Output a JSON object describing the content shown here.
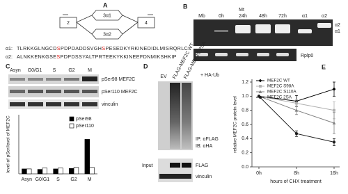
{
  "panel_labels": [
    "A",
    "B",
    "C",
    "D",
    "E"
  ],
  "panel_a": {
    "exons": [
      "2",
      "3α1",
      "3α2",
      "4"
    ],
    "sequences": [
      {
        "name": "α1:",
        "parts": [
          {
            "text": "TLRKKGLNGCD",
            "highlight": false
          },
          {
            "text": "S",
            "highlight": true
          },
          {
            "text": "PDPDADDSVGH",
            "highlight": false
          },
          {
            "text": "S",
            "highlight": true
          },
          {
            "text": "PESEDKYRKINEDIDLMISRQRLC",
            "highlight": false
          }
        ]
      },
      {
        "name": "α2:",
        "parts": [
          {
            "text": "ALNKKENKGSE",
            "highlight": false
          },
          {
            "text": "S",
            "highlight": true
          },
          {
            "text": "PDPDSSYALTPRTEEKYKKINEEFDNMIKSHKIP",
            "highlight": false
          }
        ]
      }
    ],
    "highlight_color": "#e0201a"
  },
  "panel_b": {
    "group": "Mt",
    "lanes": [
      "Mb",
      "0h",
      "24h",
      "48h",
      "72h",
      "α1",
      "α2"
    ],
    "bands": [
      "α2",
      "α1"
    ],
    "loading": "Rplp0"
  },
  "panel_c": {
    "lanes": [
      "Asyn",
      "G0/G1",
      "S",
      "G2",
      "M"
    ],
    "blots": [
      "pSer98 MEF2C",
      "pSer110 MEF2C",
      "vinculin"
    ]
  },
  "panel_d": {
    "lanes": [
      "EV",
      "FLAG-MEF2C WT",
      "FLAG-MEF2C 2SA"
    ],
    "treatment": "+ HA-Ub",
    "ip": [
      "IP: αFLAG",
      "IB: αHA"
    ],
    "input": "Input",
    "input_blots": [
      "FLAG",
      "vinculin"
    ]
  },
  "chart_data": [
    {
      "type": "bar",
      "y_label": "level of pSer/level of MEF2C",
      "categories": [
        "Asyn",
        "G0/G1",
        "S",
        "G2",
        "M"
      ],
      "series": [
        {
          "name": "pSer98",
          "color": "#000000",
          "values": [
            1,
            0.9,
            1,
            1.1,
            7
          ]
        },
        {
          "name": "pSer110",
          "color": "#ffffff",
          "values": [
            1,
            1.2,
            1.2,
            1.3,
            1.3
          ]
        }
      ],
      "ylim": [
        0,
        12
      ],
      "legend": "upper right"
    },
    {
      "type": "line",
      "y_label": "relative MEF2C protein level",
      "x_label": "hours of CHX treatment",
      "categories": [
        "0h",
        "8h",
        "16h"
      ],
      "series": [
        {
          "name": "MEF2C WT",
          "color": "#000000",
          "marker": "diamond",
          "values": [
            1,
            0.93,
            1.1
          ],
          "errors": [
            0,
            0.08,
            0.1
          ]
        },
        {
          "name": "MEF2C S98A",
          "color": "#b0b0b0",
          "marker": "square",
          "values": [
            1,
            0.9,
            0.8
          ],
          "errors": [
            0,
            0.05,
            0.12
          ]
        },
        {
          "name": "MEF2C S110A",
          "color": "#808080",
          "marker": "triangle",
          "values": [
            1,
            0.8,
            0.62
          ],
          "errors": [
            0,
            0.06,
            0.15
          ]
        },
        {
          "name": "MEF2C 2SA",
          "color": "#1a1a1a",
          "marker": "circle",
          "values": [
            1,
            0.47,
            0.35
          ],
          "errors": [
            0,
            0.04,
            0.05
          ]
        }
      ],
      "ylim": [
        0,
        1.2
      ],
      "yticks": [
        {
          "value": 0,
          "label": "0.0"
        },
        0.2,
        0.4,
        0.6,
        0.8,
        {
          "value": 1,
          "label": "1.0"
        },
        1.2
      ],
      "legend": "upper left"
    }
  ]
}
